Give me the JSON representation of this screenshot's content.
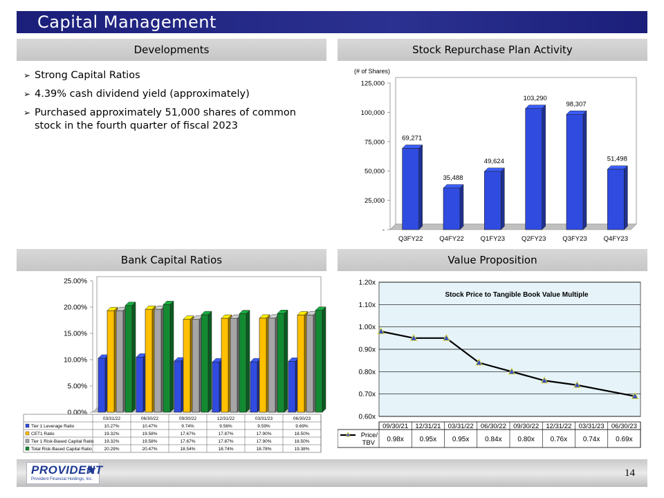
{
  "title": "Capital Management",
  "sections": {
    "developments": "Developments",
    "stock": "Stock Repurchase Plan Activity",
    "bank": "Bank Capital Ratios",
    "value": "Value Proposition"
  },
  "bullets": [
    "Strong Capital Ratios",
    "4.39% cash dividend yield (approximately)",
    "Purchased approximately 51,000 shares of common stock in the fourth quarter of fiscal 2023"
  ],
  "footer": {
    "logo_text": "PROVIDENT",
    "logo_subtext": "Provident Financial Holdings, Inc.",
    "page_number": "14"
  },
  "colors": {
    "title_bar": "#2b3190",
    "blue": "#2f4be0",
    "yellow": "#ffc000",
    "gray": "#a6a6a6",
    "green": "#138a32",
    "line": "#000000",
    "marker": "#dcdc3c",
    "plot_bg": "#e6f3f8"
  },
  "chart_data": [
    {
      "type": "bar",
      "unit_label": "(# of Shares)",
      "categories": [
        "Q3FY22",
        "Q4FY22",
        "Q1FY23",
        "Q2FY23",
        "Q3FY23",
        "Q4FY23"
      ],
      "values": [
        69271,
        35488,
        49624,
        103290,
        98307,
        51498
      ],
      "value_labels": [
        "69,271",
        "35,488",
        "49,624",
        "103,290",
        "98,307",
        "51,498"
      ],
      "ylim": [
        0,
        125000
      ],
      "yticks": [
        0,
        25000,
        50000,
        75000,
        100000,
        125000
      ],
      "ytick_labels": [
        "-",
        "25,000",
        "50,000",
        "75,000",
        "100,000",
        "125,000"
      ]
    },
    {
      "type": "bar",
      "categories": [
        "03/31/22",
        "06/30/22",
        "09/30/22",
        "12/31/22",
        "03/31/23",
        "06/30/23"
      ],
      "ylim": [
        0,
        25
      ],
      "yticks": [
        0,
        5,
        10,
        15,
        20,
        25
      ],
      "ytick_labels": [
        "0.00%",
        "5.00%",
        "10.00%",
        "15.00%",
        "20.00%",
        "25.00%"
      ],
      "series": [
        {
          "name": "Tier 1 Leverage Ratio",
          "values": [
            10.27,
            10.47,
            9.74,
            9.56,
            9.59,
            9.69
          ],
          "labels": [
            "10.27%",
            "10.47%",
            "9.74%",
            "9.56%",
            "9.59%",
            "9.69%"
          ]
        },
        {
          "name": "CET1 Ratio",
          "values": [
            19.32,
            19.58,
            17.67,
            17.87,
            17.9,
            18.5
          ],
          "labels": [
            "19.32%",
            "19.58%",
            "17.67%",
            "17.87%",
            "17.90%",
            "18.50%"
          ]
        },
        {
          "name": "Tier 1 Risk-Based Capital Ratio",
          "values": [
            19.32,
            19.58,
            17.67,
            17.87,
            17.9,
            18.5
          ],
          "labels": [
            "19.32%",
            "19.58%",
            "17.67%",
            "17.87%",
            "17.90%",
            "18.50%"
          ]
        },
        {
          "name": "Total Risk-Based Capital Ratio",
          "values": [
            20.29,
            20.47,
            18.54,
            18.74,
            18.78,
            19.38
          ],
          "labels": [
            "20.29%",
            "20.47%",
            "18.54%",
            "18.74%",
            "18.78%",
            "19.38%"
          ]
        }
      ]
    },
    {
      "type": "line",
      "title": "Stock Price to Tangible Book Value Multiple",
      "categories": [
        "09/30/21",
        "12/31/21",
        "03/31/22",
        "06/30/22",
        "09/30/22",
        "12/31/22",
        "03/31/23",
        "06/30/23"
      ],
      "series": [
        {
          "name": "Price/ TBV",
          "values": [
            0.98,
            0.95,
            0.95,
            0.84,
            0.8,
            0.76,
            0.74,
            0.69
          ],
          "labels": [
            "0.98x",
            "0.95x",
            "0.95x",
            "0.84x",
            "0.80x",
            "0.76x",
            "0.74x",
            "0.69x"
          ]
        }
      ],
      "ylim": [
        0.6,
        1.2
      ],
      "yticks": [
        0.6,
        0.7,
        0.8,
        0.9,
        1.0,
        1.1,
        1.2
      ],
      "ytick_labels": [
        "0.60x",
        "0.70x",
        "0.80x",
        "0.90x",
        "1.00x",
        "1.10x",
        "1.20x"
      ]
    }
  ]
}
